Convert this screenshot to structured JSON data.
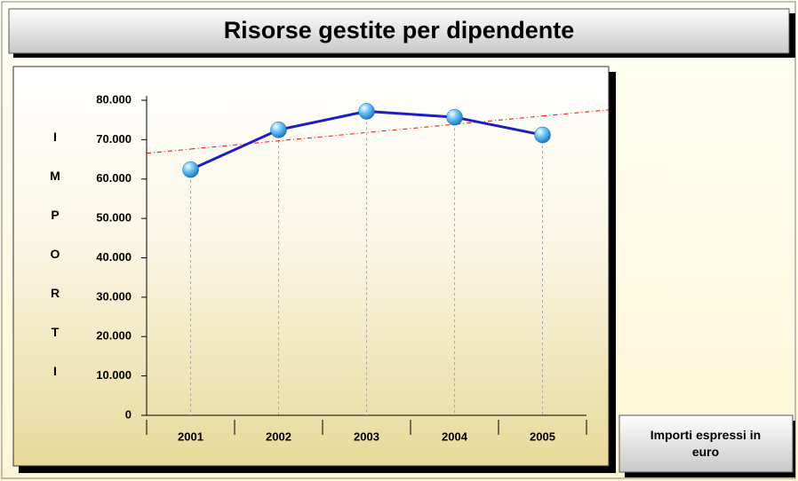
{
  "chart_data": {
    "type": "line",
    "title": "Risorse gestite per dipendente",
    "ylabel": "IMPORTI",
    "note": "Importi espressi in euro",
    "categories": [
      "2001",
      "2002",
      "2003",
      "2004",
      "2005"
    ],
    "values": [
      62400,
      72500,
      77200,
      75700,
      71200
    ],
    "color": "#1c1cc8",
    "trendline": {
      "values": [
        67600,
        69700,
        71800,
        73900,
        76000
      ],
      "color": "#ff0000"
    },
    "ylim": [
      0,
      80000
    ],
    "yticks": [
      0,
      {
        "value": 10000,
        "label": "10.000"
      },
      {
        "value": 20000,
        "label": "20.000"
      },
      {
        "value": 30000,
        "label": "30.000"
      },
      {
        "value": 40000,
        "label": "40.000"
      },
      {
        "value": 50000,
        "label": "50.000"
      },
      {
        "value": 60000,
        "label": "60.000"
      },
      {
        "value": 70000,
        "label": "70.000"
      },
      {
        "value": 80000,
        "label": "80.000"
      }
    ],
    "grid": false
  }
}
